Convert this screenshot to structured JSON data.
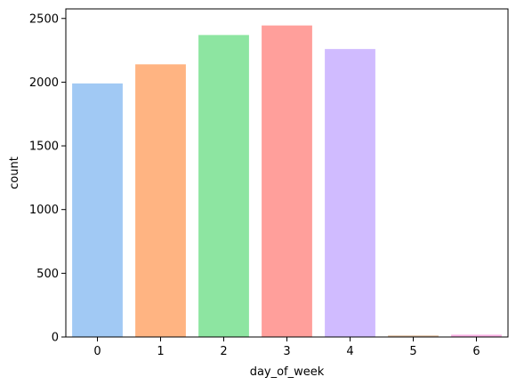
{
  "chart_data": {
    "type": "bar",
    "title": "",
    "xlabel": "day_of_week",
    "ylabel": "count",
    "categories": [
      "0",
      "1",
      "2",
      "3",
      "4",
      "5",
      "6"
    ],
    "values": [
      1990,
      2140,
      2370,
      2445,
      2260,
      12,
      18
    ],
    "colors": [
      "#a1c9f4",
      "#ffb482",
      "#8de5a1",
      "#ff9f9b",
      "#d0bbff",
      "#debb9b",
      "#fab0e4"
    ],
    "ylim": [
      0,
      2575
    ],
    "yticks": [
      0,
      500,
      1000,
      1500,
      2000,
      2500
    ],
    "grid": false,
    "legend": "none"
  }
}
